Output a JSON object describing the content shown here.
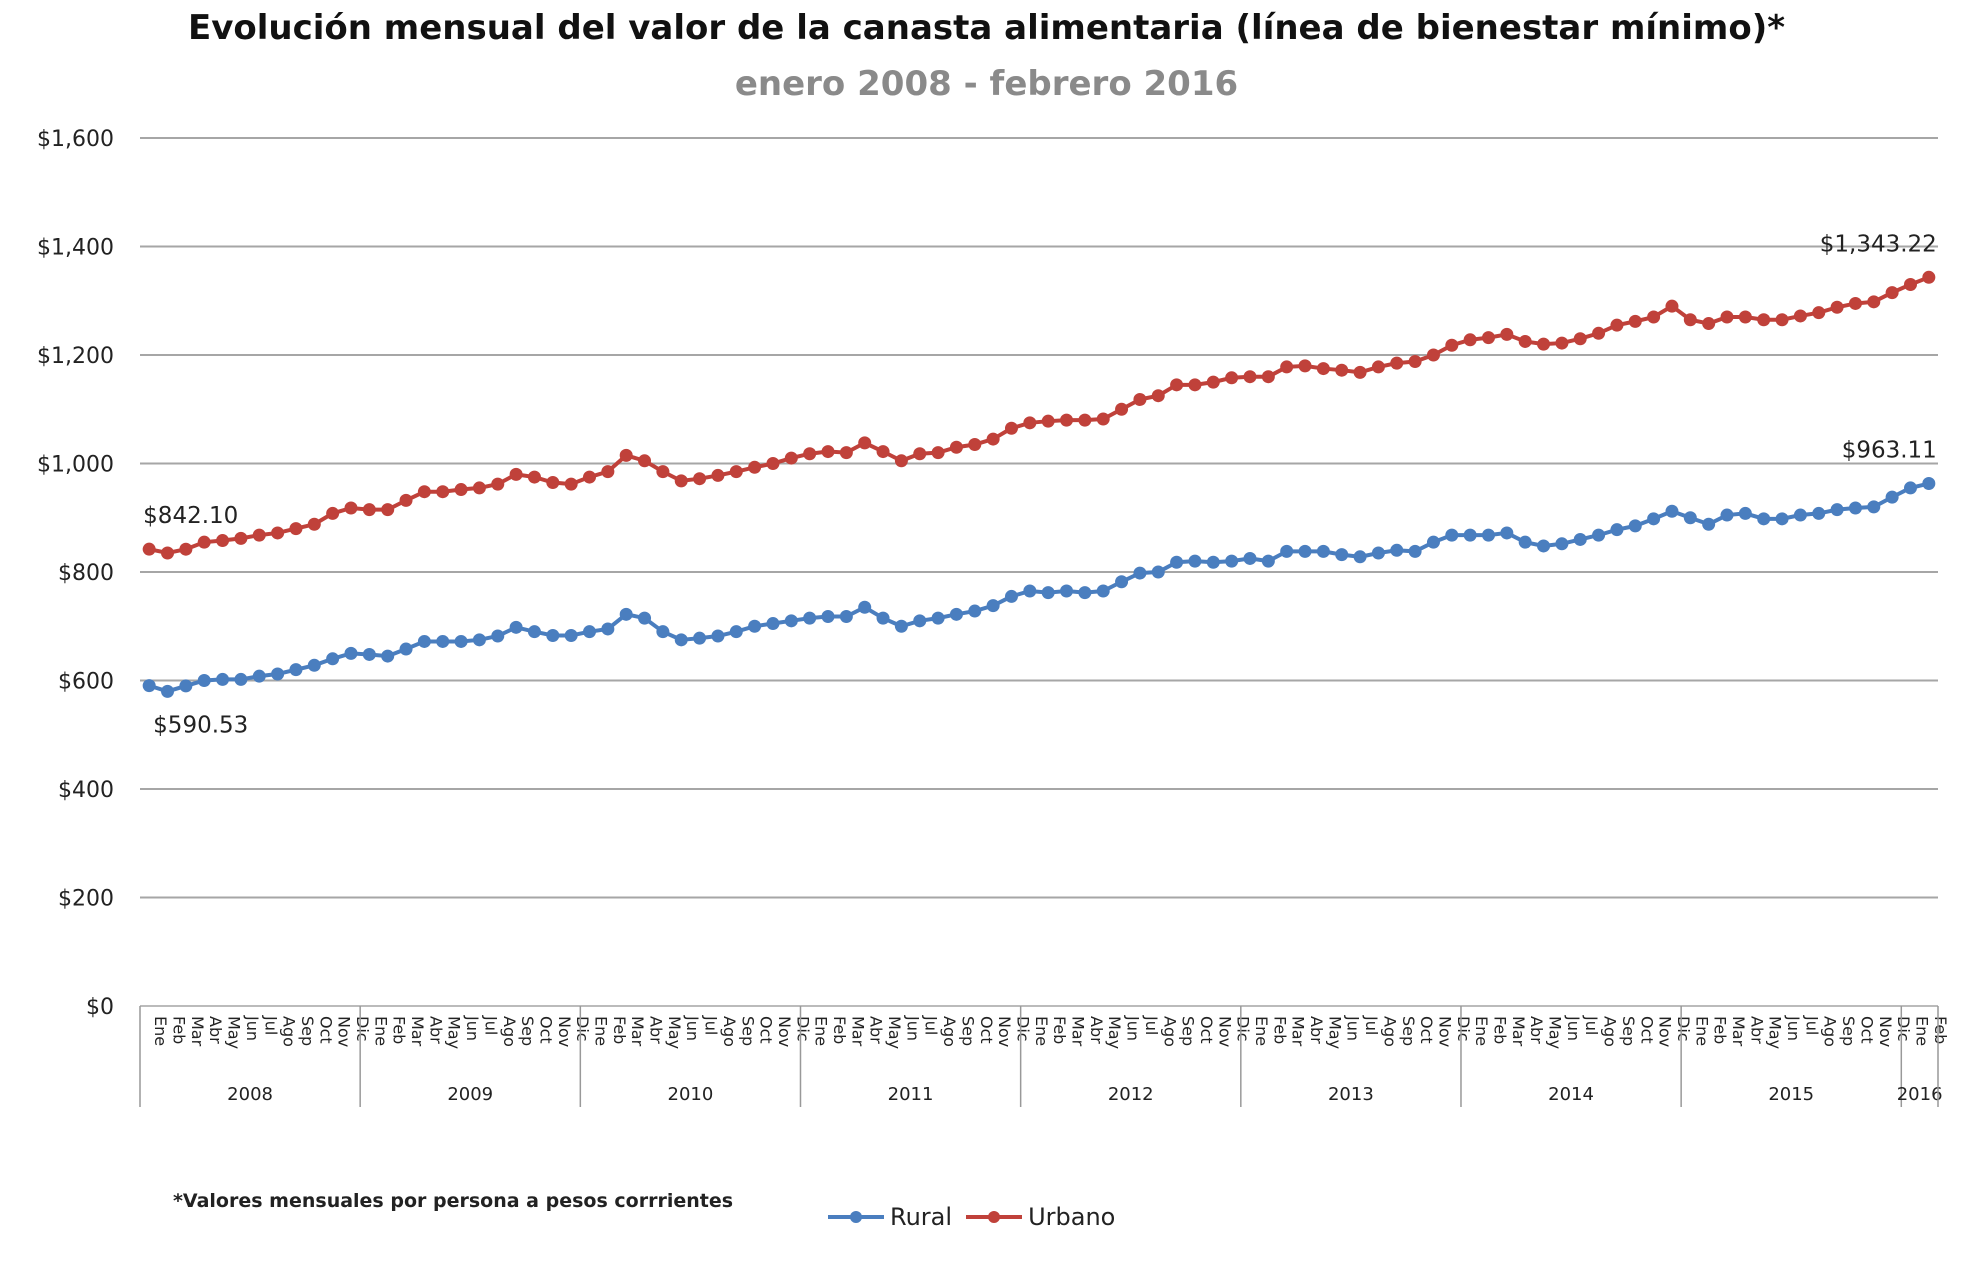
{
  "chart_data": {
    "type": "line",
    "title": "Evolución mensual del valor de la canasta alimentaria (línea de bienestar mínimo)*",
    "subtitle": "enero 2008 - febrero 2016",
    "footnote": "*Valores mensuales por persona a pesos corrrientes",
    "ylim": [
      0,
      1600
    ],
    "yticks": [
      "$0",
      "$200",
      "$400",
      "$600",
      "$800",
      "$1,000",
      "$1,200",
      "$1,400",
      "$1,600"
    ],
    "ytick_values": [
      0,
      200,
      400,
      600,
      800,
      1000,
      1200,
      1400,
      1600
    ],
    "grid": true,
    "legend": "bottom",
    "months": [
      "Ene",
      "Feb",
      "Mar",
      "Abr",
      "May",
      "Jun",
      "Jul",
      "Ago",
      "Sep",
      "Oct",
      "Nov",
      "Dic"
    ],
    "years": [
      "2008",
      "2009",
      "2010",
      "2011",
      "2012",
      "2013",
      "2014",
      "2015",
      "2016"
    ],
    "x_range": [
      "Ene 2008",
      "Feb 2016"
    ],
    "series": [
      {
        "name": "Rural",
        "color": "#4a7ebf",
        "start_label": "$590.53",
        "end_label": "$963.11",
        "values": [
          590.53,
          580,
          590,
          600,
          602,
          602,
          608,
          612,
          620,
          628,
          640,
          650,
          648,
          645,
          658,
          672,
          672,
          672,
          675,
          682,
          698,
          690,
          683,
          683,
          690,
          695,
          722,
          715,
          690,
          675,
          678,
          682,
          690,
          700,
          705,
          710,
          715,
          718,
          718,
          735,
          715,
          700,
          710,
          715,
          722,
          728,
          738,
          755,
          765,
          762,
          765,
          762,
          765,
          782,
          798,
          800,
          818,
          820,
          818,
          820,
          825,
          820,
          838,
          838,
          838,
          832,
          828,
          835,
          840,
          838,
          855,
          868,
          868,
          868,
          872,
          855,
          848,
          852,
          860,
          868,
          878,
          885,
          898,
          912,
          900,
          888,
          905,
          908,
          898,
          898,
          905,
          908,
          915,
          918,
          920,
          938,
          955,
          963.11
        ]
      },
      {
        "name": "Urbano",
        "color": "#c0413a",
        "start_label": "$842.10",
        "end_label": "$1,343.22",
        "values": [
          842.1,
          835,
          842,
          855,
          858,
          862,
          868,
          872,
          880,
          888,
          908,
          918,
          915,
          915,
          932,
          948,
          948,
          952,
          955,
          962,
          980,
          975,
          965,
          962,
          975,
          985,
          1015,
          1005,
          985,
          968,
          972,
          978,
          985,
          993,
          1000,
          1010,
          1018,
          1022,
          1020,
          1038,
          1022,
          1005,
          1018,
          1020,
          1030,
          1035,
          1045,
          1065,
          1075,
          1078,
          1080,
          1080,
          1082,
          1100,
          1118,
          1125,
          1145,
          1145,
          1150,
          1158,
          1160,
          1160,
          1178,
          1180,
          1175,
          1172,
          1168,
          1178,
          1185,
          1188,
          1200,
          1218,
          1228,
          1232,
          1238,
          1225,
          1220,
          1222,
          1230,
          1240,
          1255,
          1262,
          1270,
          1290,
          1265,
          1258,
          1270,
          1270,
          1265,
          1265,
          1272,
          1278,
          1288,
          1295,
          1298,
          1315,
          1330,
          1343.22
        ]
      }
    ]
  }
}
